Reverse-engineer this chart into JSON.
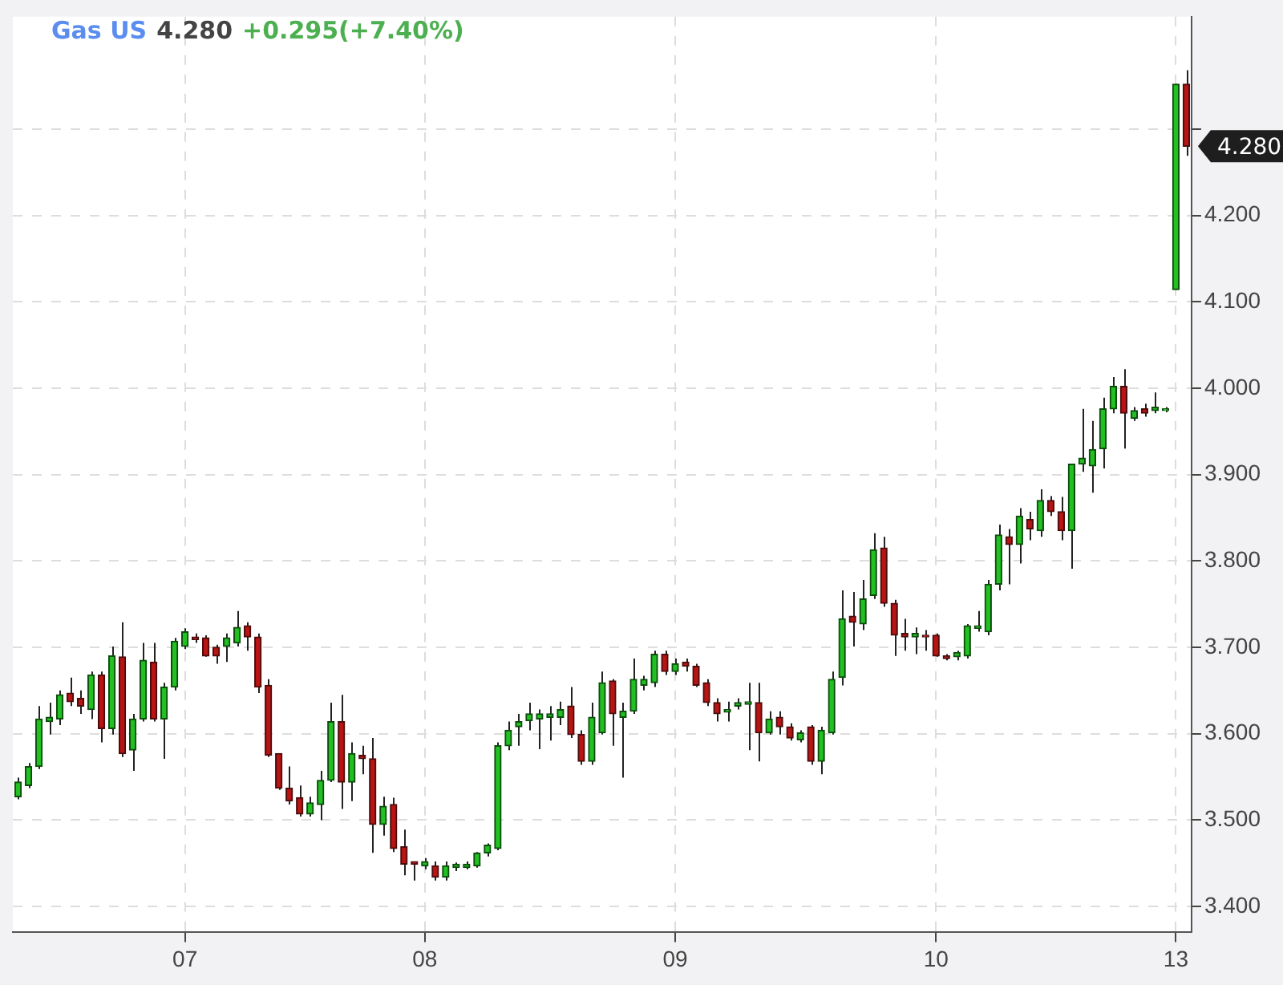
{
  "chart_data": {
    "type": "candlestick",
    "title": "Gas US",
    "annotations": [
      "4.280",
      "+0.295(+7.40%)",
      "4.280"
    ],
    "ylim": [
      3.37,
      4.43
    ],
    "yticks": [
      {
        "value": 3.4,
        "label": "3.400"
      },
      {
        "value": 3.5,
        "label": "3.500"
      },
      {
        "value": 3.6,
        "label": "3.600"
      },
      {
        "value": 3.7,
        "label": "3.700"
      },
      {
        "value": 3.8,
        "label": "3.800"
      },
      {
        "value": 3.9,
        "label": "3.900"
      },
      {
        "value": 4.0,
        "label": "4.000"
      },
      {
        "value": 4.1,
        "label": "4.100"
      },
      {
        "value": 4.2,
        "label": "4.200"
      },
      {
        "value": 4.3,
        "label": null
      }
    ],
    "grid": true,
    "categories": [
      null,
      null,
      null,
      null,
      null,
      null,
      null,
      null,
      null,
      null,
      null,
      null,
      null,
      null,
      null,
      null,
      "07",
      null,
      null,
      null,
      null,
      null,
      null,
      null,
      null,
      null,
      null,
      null,
      null,
      null,
      null,
      null,
      null,
      null,
      null,
      null,
      null,
      null,
      null,
      "08",
      null,
      null,
      null,
      null,
      null,
      null,
      null,
      null,
      null,
      null,
      null,
      null,
      null,
      null,
      null,
      null,
      null,
      null,
      null,
      null,
      null,
      null,
      null,
      "09",
      null,
      null,
      null,
      null,
      null,
      null,
      null,
      null,
      null,
      null,
      null,
      null,
      null,
      null,
      null,
      null,
      null,
      null,
      null,
      null,
      null,
      null,
      null,
      null,
      "10",
      null,
      null,
      null,
      null,
      null,
      null,
      null,
      null,
      null,
      null,
      null,
      null,
      null,
      null,
      null,
      null,
      null,
      null,
      null,
      null,
      null,
      null,
      "13",
      null
    ],
    "ohlc": [
      [
        3.527,
        3.549,
        3.524,
        3.544
      ],
      [
        3.54,
        3.566,
        3.537,
        3.562
      ],
      [
        3.562,
        3.632,
        3.559,
        3.617
      ],
      [
        3.614,
        3.636,
        3.599,
        3.619
      ],
      [
        3.617,
        3.65,
        3.61,
        3.645
      ],
      [
        3.647,
        3.665,
        3.632,
        3.637
      ],
      [
        3.641,
        3.65,
        3.623,
        3.632
      ],
      [
        3.628,
        3.672,
        3.617,
        3.668
      ],
      [
        3.668,
        3.672,
        3.59,
        3.606
      ],
      [
        3.606,
        3.701,
        3.599,
        3.69
      ],
      [
        3.689,
        3.729,
        3.573,
        3.577
      ],
      [
        3.581,
        3.623,
        3.557,
        3.617
      ],
      [
        3.617,
        3.705,
        3.614,
        3.685
      ],
      [
        3.683,
        3.705,
        3.614,
        3.617
      ],
      [
        3.617,
        3.659,
        3.571,
        3.654
      ],
      [
        3.654,
        3.711,
        3.65,
        3.707
      ],
      [
        3.701,
        3.722,
        3.698,
        3.718
      ],
      [
        3.712,
        3.716,
        3.705,
        3.709
      ],
      [
        3.711,
        3.714,
        3.689,
        3.69
      ],
      [
        3.7,
        3.703,
        3.681,
        3.69
      ],
      [
        3.701,
        3.716,
        3.683,
        3.711
      ],
      [
        3.705,
        3.742,
        3.701,
        3.723
      ],
      [
        3.725,
        3.729,
        3.696,
        3.712
      ],
      [
        3.712,
        3.716,
        3.647,
        3.654
      ],
      [
        3.656,
        3.663,
        3.573,
        3.575
      ],
      [
        3.577,
        3.577,
        3.535,
        3.537
      ],
      [
        3.537,
        3.562,
        3.518,
        3.522
      ],
      [
        3.526,
        3.54,
        3.504,
        3.507
      ],
      [
        3.507,
        3.527,
        3.504,
        3.52
      ],
      [
        3.518,
        3.557,
        3.5,
        3.546
      ],
      [
        3.546,
        3.636,
        3.544,
        3.614
      ],
      [
        3.614,
        3.645,
        3.513,
        3.544
      ],
      [
        3.544,
        3.59,
        3.522,
        3.577
      ],
      [
        3.575,
        3.586,
        3.553,
        3.571
      ],
      [
        3.571,
        3.595,
        3.462,
        3.495
      ],
      [
        3.495,
        3.527,
        3.482,
        3.516
      ],
      [
        3.518,
        3.526,
        3.463,
        3.467
      ],
      [
        3.469,
        3.489,
        3.436,
        3.449
      ],
      [
        3.452,
        3.452,
        3.43,
        3.449
      ],
      [
        3.447,
        3.456,
        3.443,
        3.452
      ],
      [
        3.447,
        3.452,
        3.43,
        3.434
      ],
      [
        3.434,
        3.452,
        3.43,
        3.447
      ],
      [
        3.445,
        3.451,
        3.441,
        3.449
      ],
      [
        3.445,
        3.452,
        3.443,
        3.449
      ],
      [
        3.447,
        3.463,
        3.445,
        3.462
      ],
      [
        3.462,
        3.473,
        3.458,
        3.471
      ],
      [
        3.467,
        3.59,
        3.465,
        3.586
      ],
      [
        3.586,
        3.614,
        3.581,
        3.604
      ],
      [
        3.608,
        3.623,
        3.586,
        3.614
      ],
      [
        3.615,
        3.636,
        3.604,
        3.623
      ],
      [
        3.617,
        3.628,
        3.582,
        3.623
      ],
      [
        3.619,
        3.632,
        3.592,
        3.623
      ],
      [
        3.619,
        3.637,
        3.61,
        3.628
      ],
      [
        3.632,
        3.654,
        3.595,
        3.599
      ],
      [
        3.599,
        3.604,
        3.564,
        3.568
      ],
      [
        3.568,
        3.636,
        3.564,
        3.619
      ],
      [
        3.601,
        3.672,
        3.599,
        3.659
      ],
      [
        3.661,
        3.663,
        3.586,
        3.623
      ],
      [
        3.619,
        3.636,
        3.549,
        3.626
      ],
      [
        3.626,
        3.687,
        3.623,
        3.663
      ],
      [
        3.656,
        3.667,
        3.65,
        3.663
      ],
      [
        3.659,
        3.696,
        3.654,
        3.692
      ],
      [
        3.692,
        3.696,
        3.668,
        3.672
      ],
      [
        3.672,
        3.687,
        3.668,
        3.681
      ],
      [
        3.683,
        3.687,
        3.672,
        3.678
      ],
      [
        3.678,
        3.681,
        3.654,
        3.656
      ],
      [
        3.659,
        3.663,
        3.632,
        3.636
      ],
      [
        3.636,
        3.641,
        3.614,
        3.623
      ],
      [
        3.625,
        3.637,
        3.614,
        3.628
      ],
      [
        3.632,
        3.641,
        3.628,
        3.636
      ],
      [
        3.634,
        3.659,
        3.581,
        3.637
      ],
      [
        3.636,
        3.659,
        3.568,
        3.601
      ],
      [
        3.601,
        3.626,
        3.599,
        3.617
      ],
      [
        3.619,
        3.626,
        3.599,
        3.608
      ],
      [
        3.608,
        3.612,
        3.592,
        3.595
      ],
      [
        3.593,
        3.604,
        3.59,
        3.601
      ],
      [
        3.608,
        3.61,
        3.564,
        3.568
      ],
      [
        3.568,
        3.608,
        3.553,
        3.604
      ],
      [
        3.601,
        3.672,
        3.599,
        3.663
      ],
      [
        3.665,
        3.766,
        3.656,
        3.733
      ],
      [
        3.736,
        3.764,
        3.701,
        3.729
      ],
      [
        3.727,
        3.778,
        3.72,
        3.756
      ],
      [
        3.76,
        3.832,
        3.756,
        3.813
      ],
      [
        3.815,
        3.828,
        3.747,
        3.751
      ],
      [
        3.751,
        3.755,
        3.69,
        3.714
      ],
      [
        3.716,
        3.733,
        3.696,
        3.712
      ],
      [
        3.712,
        3.723,
        3.692,
        3.716
      ],
      [
        3.714,
        3.72,
        3.696,
        3.712
      ],
      [
        3.714,
        3.716,
        3.689,
        3.69
      ],
      [
        3.69,
        3.692,
        3.685,
        3.687
      ],
      [
        3.689,
        3.696,
        3.685,
        3.694
      ],
      [
        3.69,
        3.727,
        3.687,
        3.725
      ],
      [
        3.722,
        3.742,
        3.718,
        3.725
      ],
      [
        3.718,
        3.778,
        3.714,
        3.773
      ],
      [
        3.773,
        3.842,
        3.766,
        3.83
      ],
      [
        3.828,
        3.837,
        3.773,
        3.819
      ],
      [
        3.819,
        3.861,
        3.797,
        3.852
      ],
      [
        3.848,
        3.857,
        3.824,
        3.837
      ],
      [
        3.835,
        3.883,
        3.828,
        3.87
      ],
      [
        3.87,
        3.875,
        3.852,
        3.857
      ],
      [
        3.857,
        3.874,
        3.824,
        3.835
      ],
      [
        3.835,
        3.912,
        3.791,
        3.912
      ],
      [
        3.912,
        3.976,
        3.903,
        3.919
      ],
      [
        3.91,
        3.962,
        3.879,
        3.929
      ],
      [
        3.93,
        3.989,
        3.907,
        3.976
      ],
      [
        3.976,
        4.013,
        3.971,
        4.002
      ],
      [
        4.002,
        4.022,
        3.93,
        3.971
      ],
      [
        3.965,
        3.978,
        3.962,
        3.974
      ],
      [
        3.976,
        3.982,
        3.967,
        3.971
      ],
      [
        3.974,
        3.995,
        3.971,
        3.978
      ],
      [
        3.974,
        3.978,
        3.972,
        3.976
      ],
      [
        4.114,
        4.352,
        4.114,
        4.352
      ],
      [
        4.352,
        4.368,
        4.269,
        4.28
      ]
    ]
  }
}
